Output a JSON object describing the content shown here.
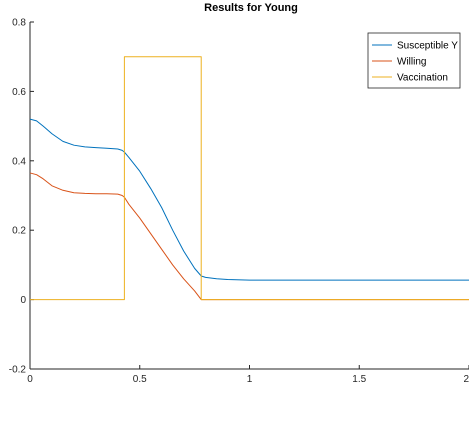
{
  "chart_data": {
    "type": "line",
    "title": "Results for Young",
    "xlabel": "",
    "ylabel": "",
    "xlim": [
      0,
      2
    ],
    "ylim": [
      -0.2,
      0.8
    ],
    "x_ticks": [
      0,
      0.5,
      1,
      1.5,
      2
    ],
    "x_tick_labels": [
      "0",
      "0.5",
      "1",
      "1.5",
      "2"
    ],
    "y_ticks": [
      -0.2,
      0,
      0.2,
      0.4,
      0.6,
      0.8
    ],
    "y_tick_labels": [
      "-0.2",
      "0",
      "0.2",
      "0.4",
      "0.6",
      "0.8"
    ],
    "grid": false,
    "legend_position": "top-right",
    "series": [
      {
        "name": "Susceptible Y",
        "color": "#0072BD",
        "x": [
          0,
          0.03,
          0.06,
          0.1,
          0.15,
          0.2,
          0.25,
          0.3,
          0.35,
          0.4,
          0.42,
          0.43,
          0.45,
          0.5,
          0.55,
          0.6,
          0.65,
          0.7,
          0.75,
          0.78,
          0.8,
          0.85,
          0.9,
          1.0,
          1.5,
          2.0
        ],
        "y": [
          0.52,
          0.515,
          0.5,
          0.478,
          0.456,
          0.445,
          0.44,
          0.438,
          0.436,
          0.434,
          0.43,
          0.425,
          0.41,
          0.37,
          0.32,
          0.265,
          0.2,
          0.14,
          0.09,
          0.068,
          0.064,
          0.06,
          0.058,
          0.056,
          0.056,
          0.056
        ]
      },
      {
        "name": "Willing",
        "color": "#D95319",
        "x": [
          0,
          0.03,
          0.06,
          0.1,
          0.15,
          0.2,
          0.25,
          0.3,
          0.35,
          0.4,
          0.42,
          0.43,
          0.45,
          0.5,
          0.55,
          0.6,
          0.65,
          0.7,
          0.75,
          0.78,
          0.8,
          1.0,
          1.5,
          2.0
        ],
        "y": [
          0.365,
          0.36,
          0.348,
          0.328,
          0.315,
          0.308,
          0.306,
          0.305,
          0.305,
          0.304,
          0.3,
          0.295,
          0.275,
          0.235,
          0.19,
          0.145,
          0.1,
          0.06,
          0.025,
          0.0,
          0.0,
          0.0,
          0.0,
          0.0
        ]
      },
      {
        "name": "Vaccination",
        "color": "#EDB120",
        "x": [
          0,
          0.43,
          0.43,
          0.78,
          0.78,
          2.0
        ],
        "y": [
          0,
          0,
          0.7,
          0.7,
          0,
          0
        ]
      }
    ]
  }
}
